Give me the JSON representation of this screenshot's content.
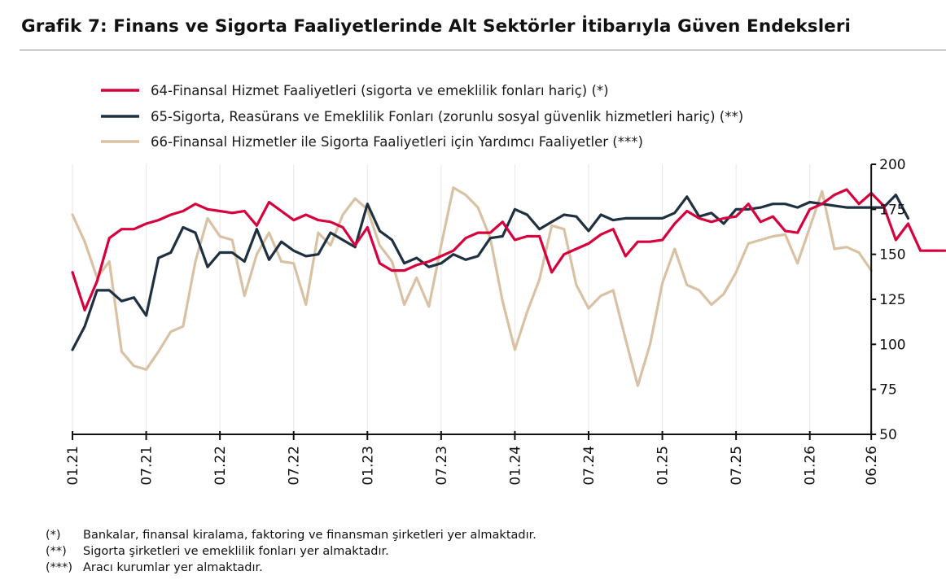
{
  "title": "Grafik 7:  Finans ve Sigorta Faaliyetlerinde Alt Sektörler İtibarıyla Güven Endeksleri",
  "colors": {
    "series64": "#d6003c",
    "series65": "#1f3040",
    "series66": "#d9c2a4",
    "grid": "#e6e6e6",
    "axis": "#111111"
  },
  "chart_data": {
    "type": "line",
    "title": "Grafik 7:  Finans ve Sigorta Faaliyetlerinde Alt Sektörler İtibarıyla Güven Endeksleri",
    "xlabel": "",
    "ylabel": "",
    "x_start": "01.21",
    "x_end": "06.26",
    "x_frequency": "monthly",
    "x_tick_labels": [
      "01.21",
      "07.21",
      "01.22",
      "07.22",
      "01.23",
      "07.23",
      "01.24",
      "07.24",
      "01.25",
      "07.25",
      "01.26",
      "06.26"
    ],
    "ylim": [
      50,
      200
    ],
    "y_ticks": [
      50,
      75,
      100,
      125,
      150,
      175,
      200
    ],
    "grid": "vertical",
    "legend_position": "top-left",
    "series": [
      {
        "name": "64-Finansal Hizmet Faaliyetleri (sigorta ve emeklilik fonları hariç) (*)",
        "color": "#d6003c",
        "values": [
          140,
          119,
          135,
          159,
          164,
          164,
          167,
          169,
          172,
          174,
          178,
          175,
          174,
          173,
          174,
          166,
          179,
          174,
          169,
          172,
          169,
          168,
          165,
          155,
          165,
          145,
          141,
          141,
          144,
          146,
          149,
          152,
          159,
          162,
          162,
          168,
          158,
          160,
          160,
          140,
          150,
          153,
          156,
          161,
          164,
          149,
          157,
          157,
          158,
          167,
          174,
          170,
          168,
          170,
          171,
          178,
          168,
          171,
          163,
          162,
          175,
          178,
          183,
          186,
          178,
          184,
          177,
          158,
          167,
          152,
          152,
          152
        ]
      },
      {
        "name": "65-Sigorta, Reasürans ve Emeklilik Fonları (zorunlu sosyal güvenlik hizmetleri hariç) (**)",
        "color": "#1f3040",
        "values": [
          97,
          110,
          130,
          130,
          124,
          126,
          116,
          148,
          151,
          165,
          162,
          143,
          151,
          151,
          146,
          164,
          147,
          157,
          152,
          149,
          150,
          162,
          158,
          154,
          178,
          163,
          158,
          145,
          148,
          143,
          145,
          150,
          147,
          149,
          159,
          160,
          175,
          172,
          164,
          168,
          172,
          171,
          163,
          172,
          169,
          170,
          170,
          170,
          170,
          173,
          182,
          171,
          173,
          167,
          175,
          175,
          176,
          178,
          178,
          176,
          179,
          178,
          177,
          176,
          176,
          176,
          176,
          183,
          170
        ]
      },
      {
        "name": "66-Finansal Hizmetler ile Sigorta Faaliyetleri için Yardımcı Faaliyetler (***)",
        "color": "#d9c2a4",
        "values": [
          172,
          157,
          137,
          146,
          96,
          88,
          86,
          96,
          107,
          110,
          146,
          170,
          160,
          158,
          127,
          150,
          162,
          146,
          145,
          122,
          162,
          155,
          172,
          181,
          175,
          155,
          146,
          122,
          137,
          121,
          155,
          187,
          183,
          176,
          159,
          124,
          97,
          118,
          136,
          166,
          164,
          133,
          120,
          127,
          130,
          103,
          77,
          100,
          134,
          153,
          133,
          130,
          122,
          128,
          140,
          156,
          158,
          160,
          161,
          145,
          165,
          185,
          153,
          154,
          151,
          141
        ]
      }
    ],
    "footnotes": [
      {
        "mark": "(*)",
        "text": "Bankalar, finansal kiralama, faktoring ve finansman şirketleri yer almaktadır."
      },
      {
        "mark": "(**)",
        "text": "Sigorta şirketleri ve emeklilik fonları yer almaktadır."
      },
      {
        "mark": "(***)",
        "text": "Aracı kurumlar yer almaktadır."
      }
    ]
  }
}
